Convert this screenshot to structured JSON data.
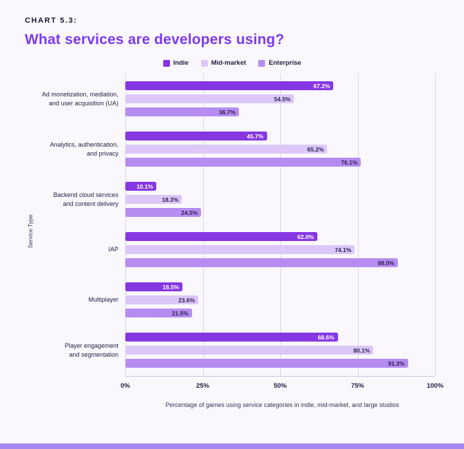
{
  "page": {
    "kicker": "CHART 5.3:",
    "title": "What services are developers using?",
    "background": "#faf8fd",
    "footer_strip_color": "#a687f0"
  },
  "chart_data": {
    "type": "bar",
    "orientation": "horizontal",
    "title": "What services are developers using?",
    "ylabel": "Service Type",
    "xlabel": "Percentage of games using service categories in indie, mid-market, and large studios",
    "xlim": [
      0,
      100
    ],
    "x_ticks": [
      "0%",
      "25%",
      "50%",
      "75%",
      "100%"
    ],
    "grid": "vertical",
    "legend_position": "top-center",
    "categories": [
      "Ad monetization, mediation,\nand user acquisition (UA)",
      "Analytics, authentication,\nand privacy",
      "Backend cloud services\nand content delivery",
      "IAP",
      "Multiplayer",
      "Player engagement\nand segmentation"
    ],
    "series": [
      {
        "name": "Indie",
        "color": "#8637e2",
        "value_text_color": "#ffffff",
        "values": [
          67.2,
          45.7,
          10.1,
          62.0,
          18.5,
          68.6
        ]
      },
      {
        "name": "Mid-market",
        "color": "#dcc7f8",
        "value_text_color": "#2d2150",
        "values": [
          54.5,
          65.2,
          18.3,
          74.1,
          23.6,
          80.1
        ]
      },
      {
        "name": "Enterprise",
        "color": "#b68cf1",
        "value_text_color": "#2d2150",
        "values": [
          36.7,
          76.1,
          24.5,
          88.0,
          21.5,
          91.3
        ]
      }
    ]
  }
}
